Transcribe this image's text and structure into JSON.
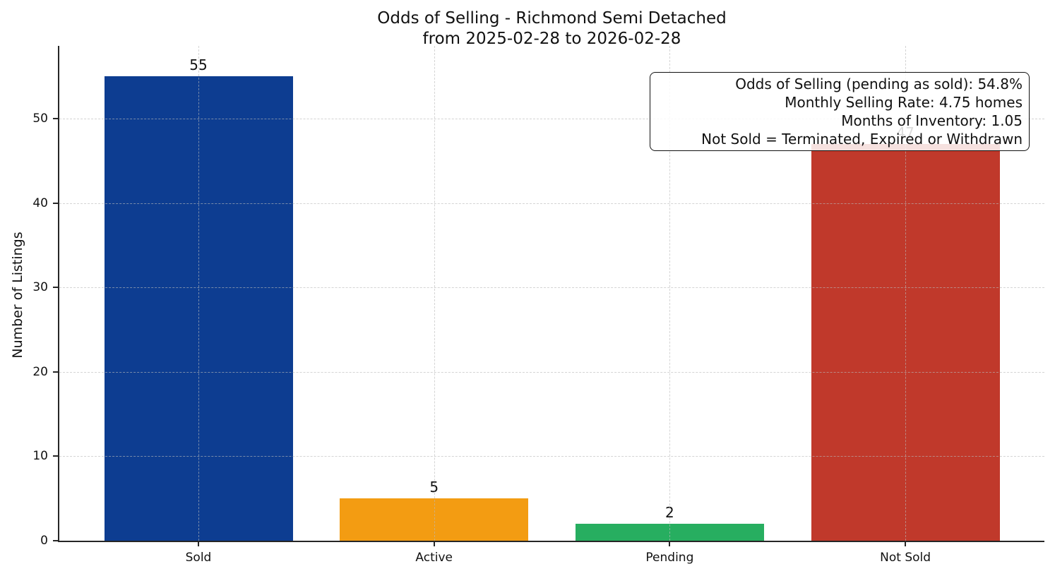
{
  "chart_data": {
    "type": "bar",
    "title": "Odds of Selling - Richmond Semi Detached",
    "subtitle": "from 2025-02-28 to 2026-02-28",
    "ylabel": "Number of Listings",
    "xlabel": "",
    "categories": [
      "Sold",
      "Active",
      "Pending",
      "Not Sold"
    ],
    "values": [
      55,
      5,
      2,
      47
    ],
    "bar_colors": [
      "#0d3d91",
      "#f39c12",
      "#27ae60",
      "#c0392b"
    ],
    "yticks": [
      0,
      10,
      20,
      30,
      40,
      50
    ],
    "ylim": [
      0,
      58.6
    ],
    "grid": true,
    "grid_style": "dashed",
    "legend_position": "none",
    "annotation": {
      "lines": [
        "Odds of Selling (pending as sold): 54.8%",
        "Monthly Selling Rate: 4.75 homes",
        "Months of Inventory: 1.05",
        "Not Sold = Terminated, Expired or Withdrawn"
      ]
    }
  }
}
